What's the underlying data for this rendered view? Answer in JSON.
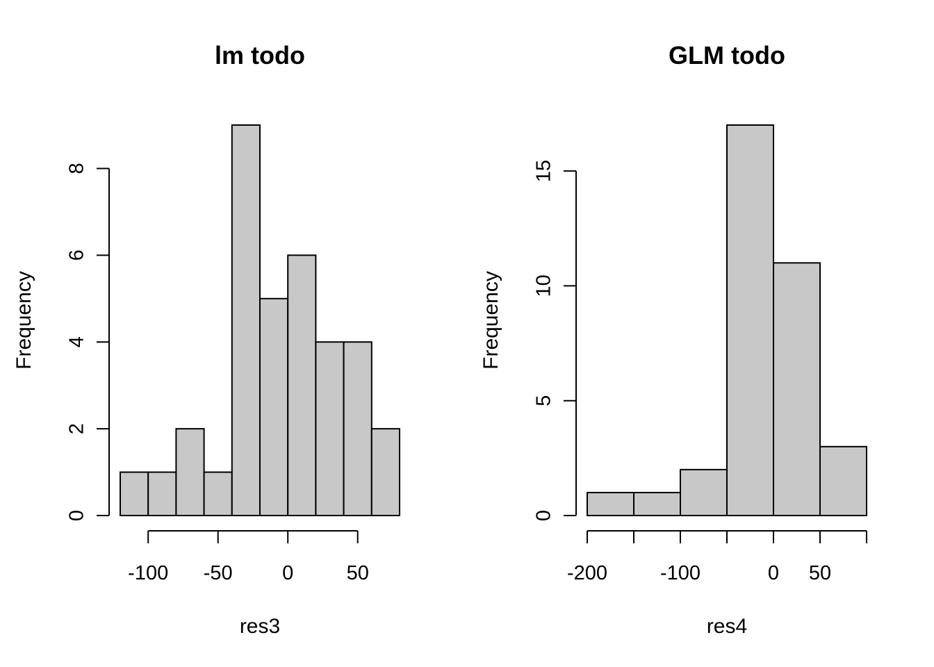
{
  "chart_data": [
    {
      "type": "bar",
      "subtype": "histogram",
      "title": "lm todo",
      "xlabel": "res3",
      "ylabel": "Frequency",
      "bins": [
        {
          "from": -120,
          "to": -100,
          "count": 1
        },
        {
          "from": -100,
          "to": -80,
          "count": 1
        },
        {
          "from": -80,
          "to": -60,
          "count": 2
        },
        {
          "from": -60,
          "to": -40,
          "count": 1
        },
        {
          "from": -40,
          "to": -20,
          "count": 9
        },
        {
          "from": -20,
          "to": 0,
          "count": 5
        },
        {
          "from": 0,
          "to": 20,
          "count": 6
        },
        {
          "from": 20,
          "to": 40,
          "count": 4
        },
        {
          "from": 40,
          "to": 60,
          "count": 4
        },
        {
          "from": 60,
          "to": 80,
          "count": 2
        }
      ],
      "xlim": [
        -120,
        80
      ],
      "ylim": [
        0,
        9
      ],
      "x_ticks": [
        -100,
        -50,
        0,
        50
      ],
      "x_tick_labels": [
        "-100",
        "-50",
        "0",
        "50"
      ],
      "y_ticks": [
        0,
        2,
        4,
        6,
        8
      ],
      "y_tick_labels": [
        "0",
        "2",
        "4",
        "6",
        "8"
      ],
      "bar_color": "#c8c8c8",
      "grid": false
    },
    {
      "type": "bar",
      "subtype": "histogram",
      "title": "GLM todo",
      "xlabel": "res4",
      "ylabel": "Frequency",
      "bins": [
        {
          "from": -200,
          "to": -150,
          "count": 1
        },
        {
          "from": -150,
          "to": -100,
          "count": 1
        },
        {
          "from": -100,
          "to": -50,
          "count": 2
        },
        {
          "from": -50,
          "to": 0,
          "count": 17
        },
        {
          "from": 0,
          "to": 50,
          "count": 11
        },
        {
          "from": 50,
          "to": 100,
          "count": 3
        }
      ],
      "xlim": [
        -200,
        100
      ],
      "ylim": [
        0,
        17
      ],
      "x_ticks": [
        -200,
        -150,
        -100,
        -50,
        0,
        50,
        100
      ],
      "x_tick_labels": [
        "-200",
        "",
        "-100",
        "",
        "0",
        "50",
        ""
      ],
      "y_ticks": [
        0,
        5,
        10,
        15
      ],
      "y_tick_labels": [
        "0",
        "5",
        "10",
        "15"
      ],
      "bar_color": "#c8c8c8",
      "grid": false
    }
  ]
}
